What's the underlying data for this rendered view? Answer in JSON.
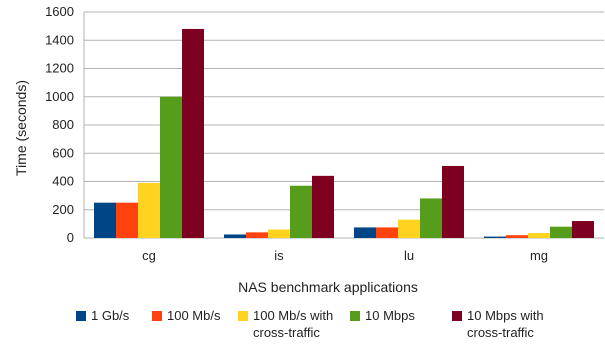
{
  "chart_data": {
    "type": "bar",
    "title": "",
    "xlabel": "NAS benchmark applications",
    "ylabel": "Time (seconds)",
    "ylim": [
      0,
      1600
    ],
    "yticks": [
      0,
      200,
      400,
      600,
      800,
      1000,
      1200,
      1400,
      1600
    ],
    "categories": [
      "cg",
      "is",
      "lu",
      "mg"
    ],
    "grid": true,
    "legend_position": "bottom",
    "series": [
      {
        "name": "1 Gb/s",
        "color": "#004586",
        "values": [
          250,
          25,
          75,
          10
        ]
      },
      {
        "name": "100 Mb/s",
        "color": "#ff420e",
        "values": [
          250,
          40,
          75,
          20
        ]
      },
      {
        "name": "100 Mb/s with cross-traffic",
        "color": "#ffd320",
        "values": [
          390,
          60,
          130,
          35
        ]
      },
      {
        "name": "10 Mbps",
        "color": "#579d1c",
        "values": [
          1000,
          370,
          280,
          80
        ]
      },
      {
        "name": "10 Mbps with cross-traffic",
        "color": "#7e0021",
        "values": [
          1480,
          440,
          510,
          120
        ]
      }
    ]
  }
}
